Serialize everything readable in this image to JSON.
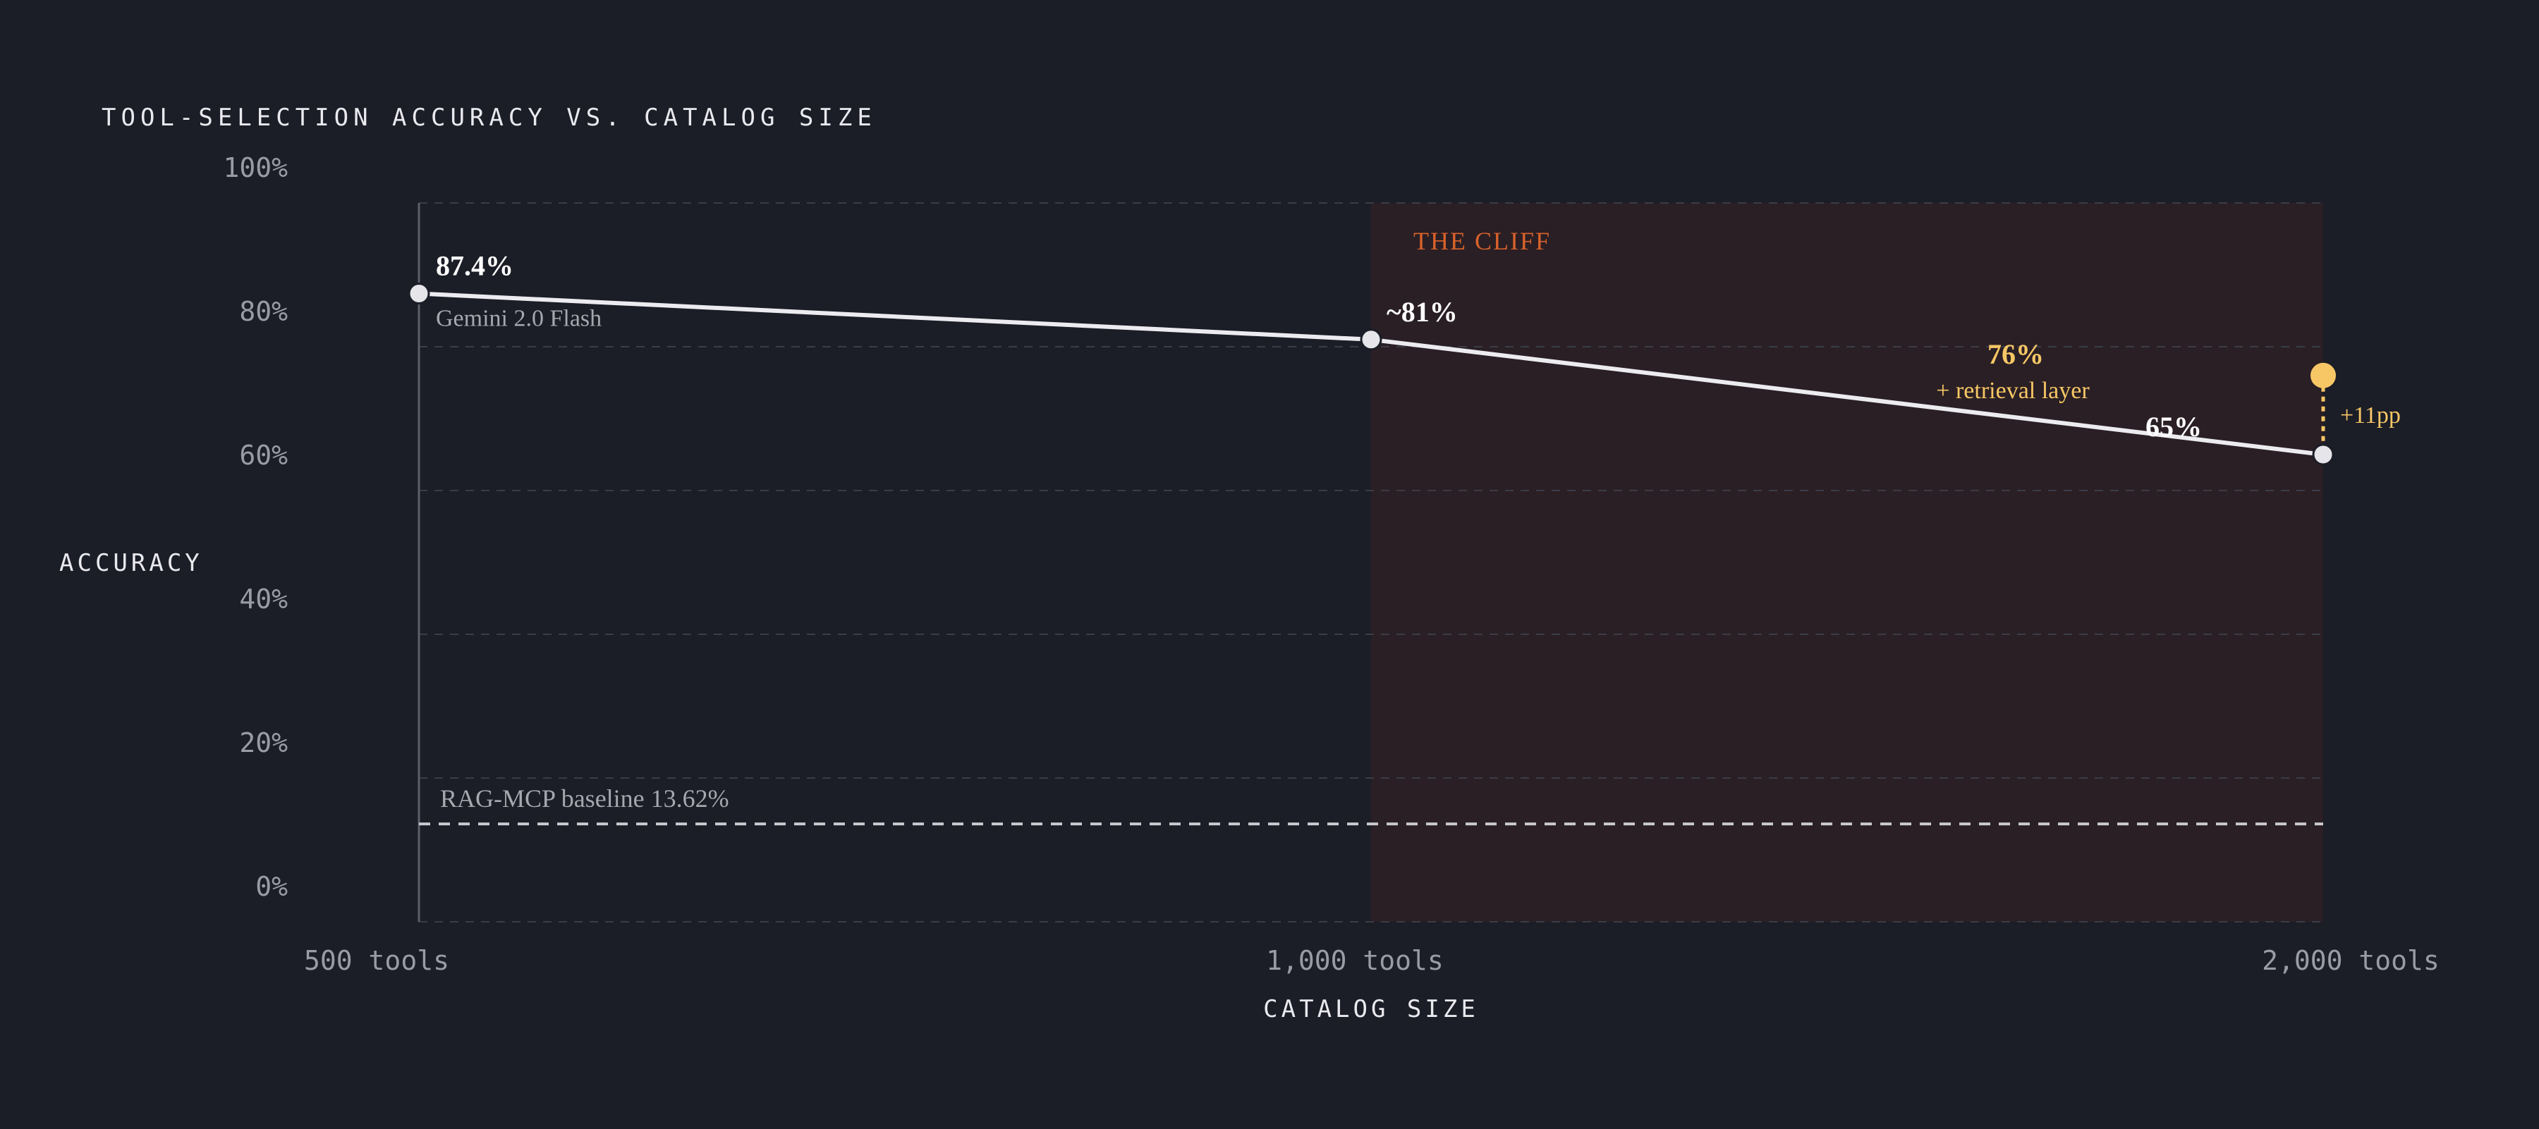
{
  "chart_data": {
    "type": "line",
    "title": "TOOL-SELECTION ACCURACY VS. CATALOG SIZE",
    "xlabel": "CATALOG SIZE",
    "ylabel": "ACCURACY",
    "x_categories": [
      "500 tools",
      "1,000 tools",
      "2,000 tools"
    ],
    "y_ticks": [
      0,
      20,
      40,
      60,
      80,
      100
    ],
    "y_tick_labels": [
      "0%",
      "20%",
      "40%",
      "60%",
      "80%",
      "100%"
    ],
    "ylim": [
      0,
      100
    ],
    "grid": true,
    "series": [
      {
        "values": [
          87.4,
          81,
          65
        ],
        "point_labels": [
          "87.4%",
          "~81%",
          "65%"
        ]
      }
    ],
    "start_sublabel": "Gemini 2.0 Flash",
    "highlight_region": {
      "label": "THE CLIFF",
      "x_from": "1,000 tools",
      "x_to": "2,000 tools"
    },
    "baseline": {
      "label": "RAG-MCP baseline 13.62%",
      "value": 13.62
    },
    "retrieval_point": {
      "x": "2,000 tools",
      "value": 76,
      "label": "76%",
      "sublabel": "+ retrieval layer",
      "delta_label": "+11pp"
    },
    "colors": {
      "background": "#1b1d27",
      "line": "#ececf0",
      "cliff_region": "#2a1f24",
      "cliff_label": "#d9622b",
      "retrieval": "#f7c766",
      "baseline": "#c9cad0"
    }
  }
}
